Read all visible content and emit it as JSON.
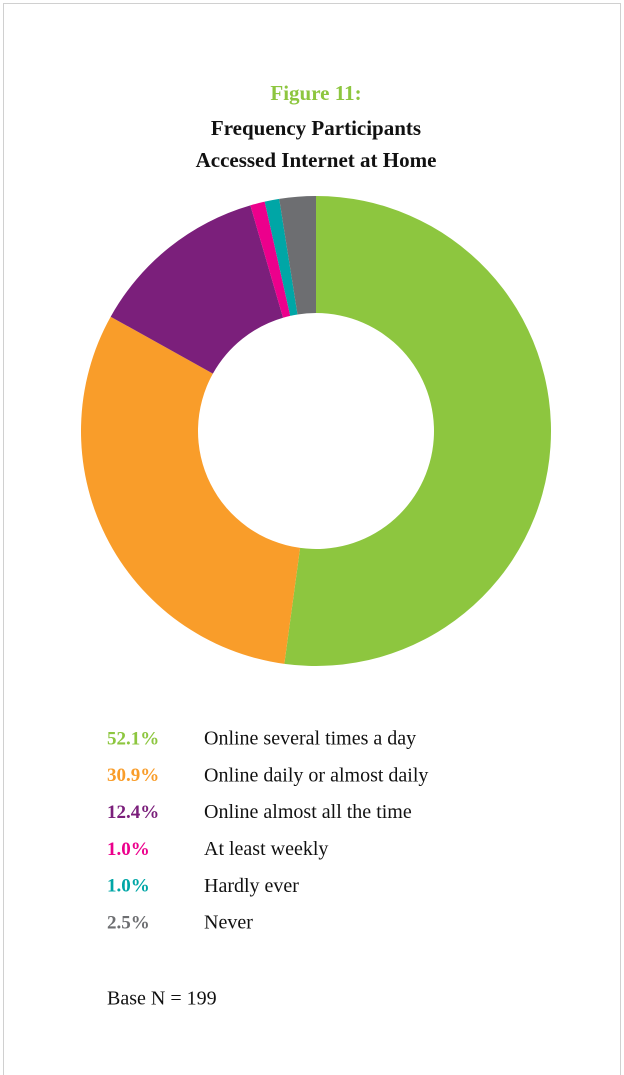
{
  "chart_data": {
    "type": "donut",
    "label": "Figure 11:",
    "title": [
      "Frequency Participants",
      "Accessed Internet at Home"
    ],
    "categories": [
      "Online several times a day",
      "Online daily or almost daily",
      "Online almost all the time",
      "At least weekly",
      "Hardly ever",
      "Never"
    ],
    "values": [
      52.1,
      30.9,
      12.4,
      1.0,
      1.0,
      2.5
    ],
    "value_labels": [
      "52.1%",
      "30.9%",
      "12.4%",
      "1.0%",
      "1.0%",
      "2.5%"
    ],
    "colors": [
      "#8dc63f",
      "#f99d2a",
      "#7b1f7b",
      "#ec008c",
      "#00a6a6",
      "#6d6e71"
    ],
    "note": "Base N = 199"
  }
}
